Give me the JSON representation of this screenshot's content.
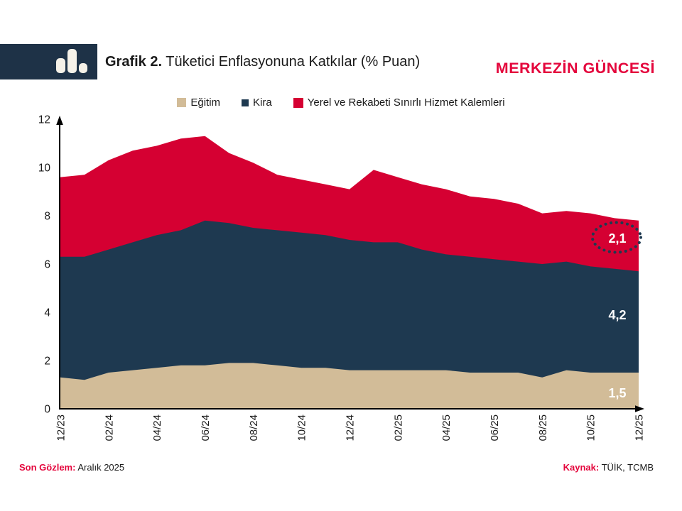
{
  "header": {
    "title_prefix": "Grafik 2.",
    "title_rest": " Tüketici Enflasyonuna Katkılar (% Puan)",
    "brand": "MERKEZİN GÜNCESİ",
    "logo_icon": "bar-chart-icon"
  },
  "legend": {
    "items": [
      {
        "label": "Eğitim",
        "color": "#d2bc98"
      },
      {
        "label": "Kira",
        "color": "#1e3950"
      },
      {
        "label": "Yerel ve Rekabeti Sınırlı Hizmet Kalemleri",
        "color": "#d50032"
      }
    ]
  },
  "footer": {
    "last_observation_label": "Son Gözlem:",
    "last_observation_value": " Aralık 2025",
    "source_label": "Kaynak:",
    "source_value": " TÜİK, TCMB"
  },
  "colors": {
    "egitim": "#d2bc98",
    "kira": "#1e3950",
    "yerel": "#d50032",
    "accent_red": "#e4063c",
    "axis": "#000000",
    "logo_bg": "#1e3247"
  },
  "chart_data": {
    "type": "area",
    "stacked": true,
    "title": "Grafik 2. Tüketici Enflasyonuna Katkılar (% Puan)",
    "x": [
      "12/23",
      "01/24",
      "02/24",
      "03/24",
      "04/24",
      "05/24",
      "06/24",
      "07/24",
      "08/24",
      "09/24",
      "10/24",
      "11/24",
      "12/24",
      "01/25",
      "02/25",
      "03/25",
      "04/25",
      "05/25",
      "06/25",
      "07/25",
      "08/25",
      "09/25",
      "10/25",
      "11/25",
      "12/25"
    ],
    "x_tick_labels": [
      "12/23",
      "02/24",
      "04/24",
      "06/24",
      "08/24",
      "10/24",
      "12/24",
      "02/25",
      "04/25",
      "06/25",
      "08/25",
      "10/25",
      "12/25"
    ],
    "x_tick_every": 2,
    "y_ticks": [
      0,
      2,
      4,
      6,
      8,
      10,
      12
    ],
    "ylim": [
      0,
      12
    ],
    "grid": false,
    "legend_position": "top",
    "series": [
      {
        "name": "Eğitim",
        "color": "#d2bc98",
        "values": [
          1.3,
          1.2,
          1.5,
          1.6,
          1.7,
          1.8,
          1.8,
          1.9,
          1.9,
          1.8,
          1.7,
          1.7,
          1.6,
          1.6,
          1.6,
          1.6,
          1.6,
          1.5,
          1.5,
          1.5,
          1.3,
          1.6,
          1.5,
          1.5,
          1.5
        ]
      },
      {
        "name": "Kira",
        "color": "#1e3950",
        "values": [
          5.0,
          5.1,
          5.1,
          5.3,
          5.5,
          5.6,
          6.0,
          5.8,
          5.6,
          5.6,
          5.6,
          5.5,
          5.4,
          5.3,
          5.3,
          5.0,
          4.8,
          4.8,
          4.7,
          4.6,
          4.7,
          4.5,
          4.4,
          4.3,
          4.2
        ]
      },
      {
        "name": "Yerel ve Rekabeti Sınırlı Hizmet Kalemleri",
        "color": "#d50032",
        "values": [
          3.3,
          3.4,
          3.7,
          3.8,
          3.7,
          3.8,
          3.5,
          2.9,
          2.7,
          2.3,
          2.2,
          2.1,
          2.1,
          3.0,
          2.7,
          2.7,
          2.7,
          2.5,
          2.5,
          2.4,
          2.1,
          2.1,
          2.2,
          2.1,
          2.1
        ]
      }
    ],
    "end_labels": [
      {
        "series": "Eğitim",
        "text": "1,5",
        "circled": false
      },
      {
        "series": "Kira",
        "text": "4,2",
        "circled": false
      },
      {
        "series": "Yerel ve Rekabeti Sınırlı Hizmet Kalemleri",
        "text": "2,1",
        "circled": true
      }
    ]
  }
}
